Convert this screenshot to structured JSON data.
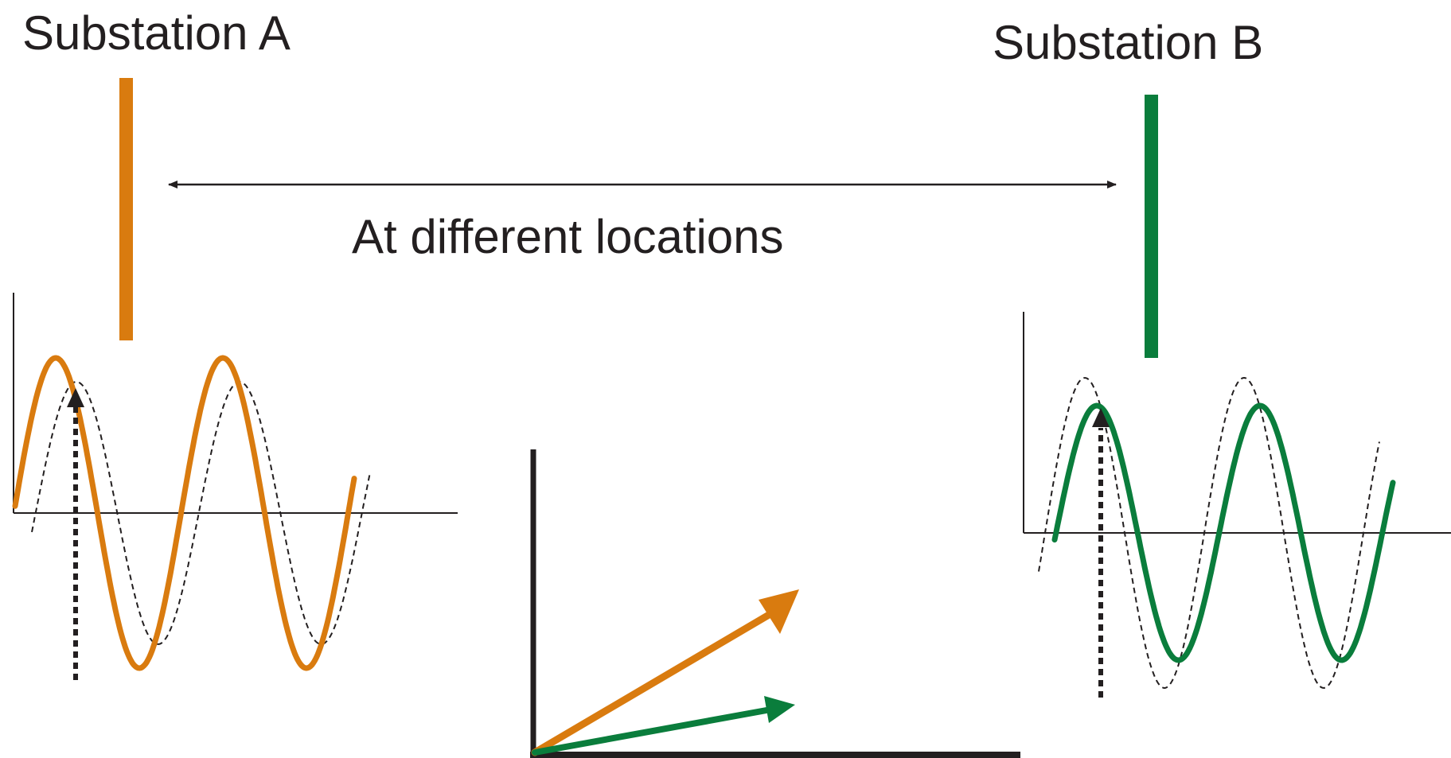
{
  "substation_a": {
    "label": "Substation A",
    "color": "#d97b0f"
  },
  "substation_b": {
    "label": "Substation B",
    "color": "#0a7d3c"
  },
  "distance_label": "At different locations",
  "reference_wave_style": "black-dashed",
  "sample_marker_style": "black-dotted-arrow",
  "phasor_diagram": {
    "axes_color": "#231f20",
    "phasors": [
      {
        "id": "phasor-a",
        "color": "#d97b0f"
      },
      {
        "id": "phasor-b",
        "color": "#0a7d3c"
      }
    ]
  }
}
